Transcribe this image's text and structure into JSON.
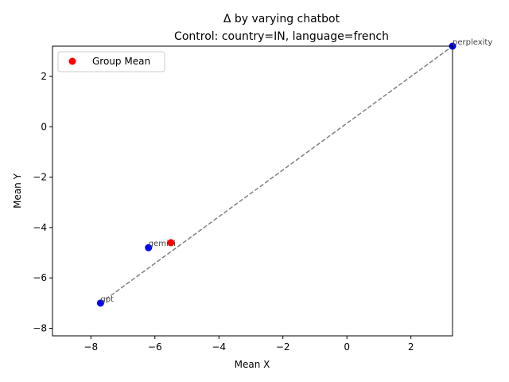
{
  "chart_data": {
    "type": "scatter",
    "title_line1": "Δ by varying chatbot",
    "title_line2": "Control: country=IN, language=french",
    "xlabel": "Mean X",
    "ylabel": "Mean Y",
    "xlim": [
      -9.2,
      3.3
    ],
    "ylim": [
      -8.3,
      3.2
    ],
    "xticks": [
      -8,
      -6,
      -4,
      -2,
      0,
      2
    ],
    "yticks": [
      -8,
      -6,
      -4,
      -2,
      0,
      2
    ],
    "xtick_labels": [
      "−8",
      "−6",
      "−4",
      "−2",
      "0",
      "2"
    ],
    "ytick_labels": [
      "−8",
      "−6",
      "−4",
      "−2",
      "0",
      "2"
    ],
    "points": [
      {
        "label": "gpt",
        "x": -7.7,
        "y": -7.0
      },
      {
        "label": "gemini",
        "x": -6.2,
        "y": -4.8
      },
      {
        "label": "perplexity",
        "x": 3.3,
        "y": 3.2
      }
    ],
    "group_mean": {
      "x": -5.5,
      "y": -4.6
    },
    "trend_line": {
      "x": [
        -7.7,
        3.3
      ],
      "y": [
        -7.0,
        3.2
      ]
    },
    "legend": {
      "entries": [
        "Group Mean"
      ],
      "position": "upper-left"
    },
    "colors": {
      "points": "#0000ff",
      "group_mean": "#ff0000",
      "trend_line": "#808080"
    },
    "grid": false
  }
}
